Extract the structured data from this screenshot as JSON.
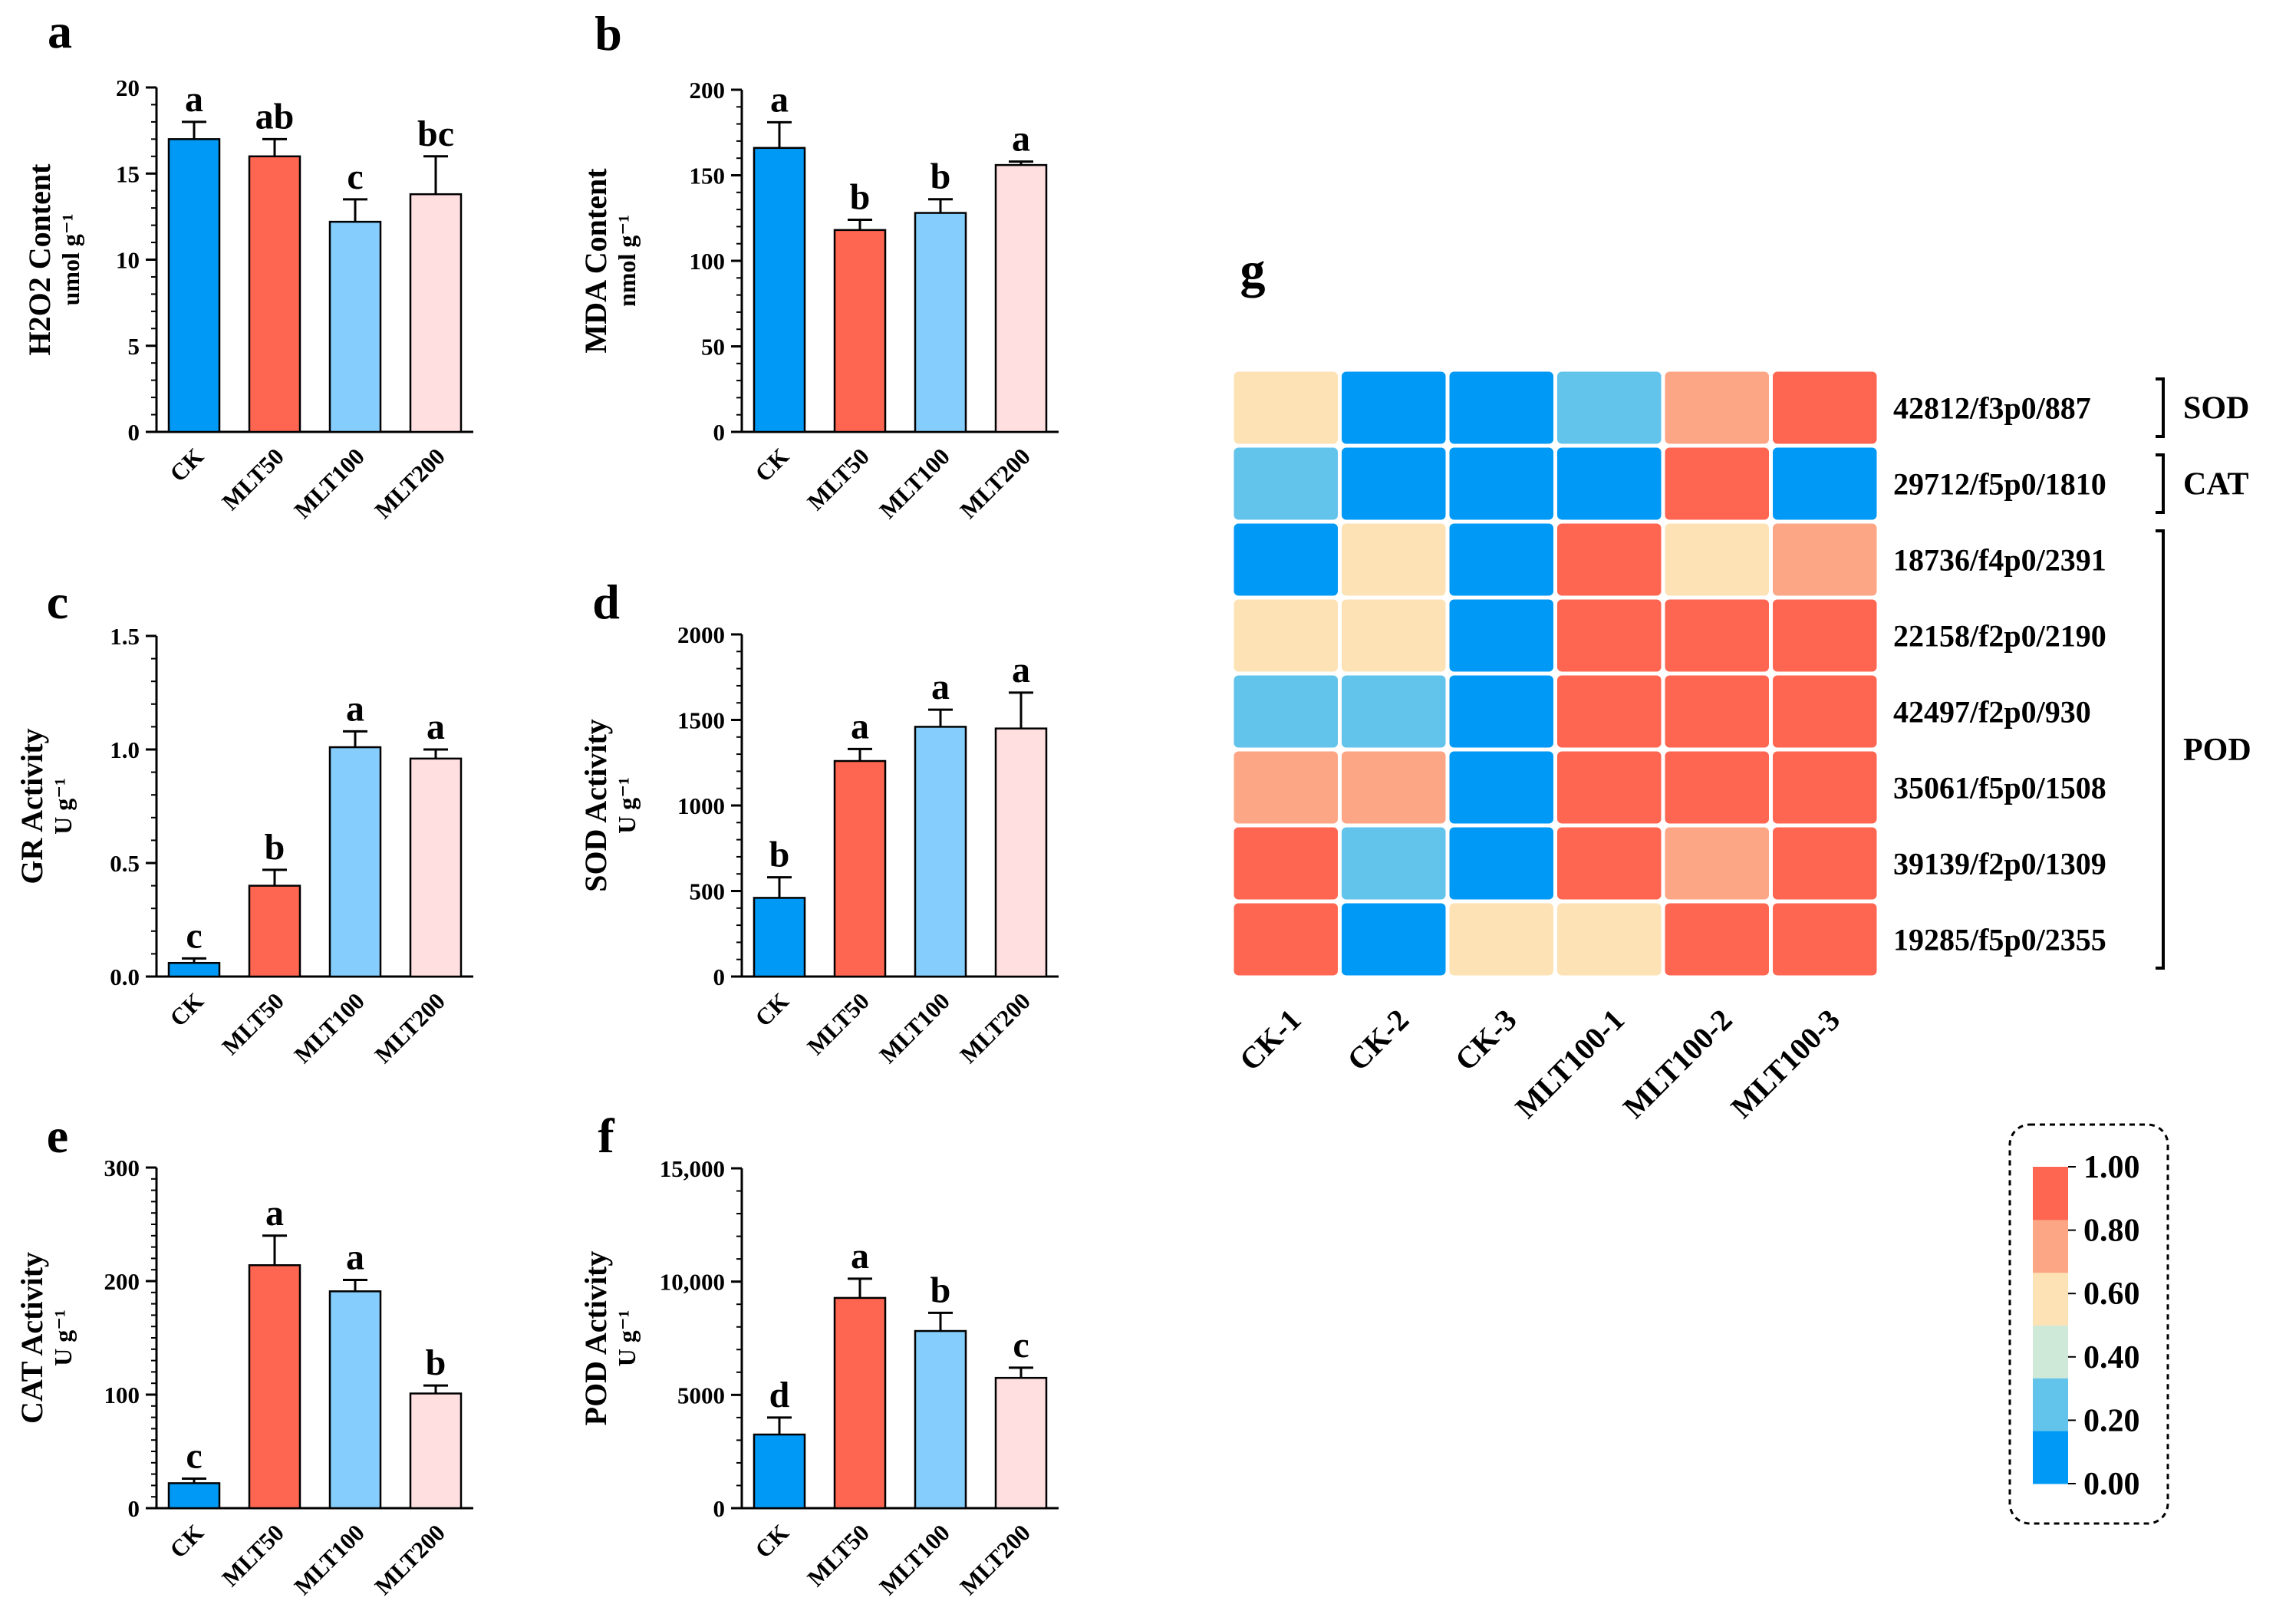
{
  "colors": {
    "CK": "#0099f5",
    "MLT50": "#ff6651",
    "MLT100": "#85cdfd",
    "MLT200": "#ffdfe0",
    "heat_bins": [
      "#0099f5",
      "#62c3eb",
      "#cfe9d9",
      "#fde2b6",
      "#fda685",
      "#ff6651"
    ]
  },
  "chart_data": [
    {
      "panel": "a",
      "type": "bar",
      "ylabel_main": "H2O2 Content",
      "ylabel_unit": "umol g⁻¹",
      "ylim": [
        0,
        20
      ],
      "yticks": [
        0,
        5,
        10,
        15,
        20
      ],
      "tick_labels": [
        "0",
        "5",
        "10",
        "15",
        "20"
      ],
      "minor_step": 1,
      "categories": [
        "CK",
        "MLT50",
        "MLT100",
        "MLT200"
      ],
      "values": [
        17.0,
        16.0,
        12.2,
        13.8
      ],
      "errors": [
        1.0,
        1.0,
        1.3,
        2.2
      ],
      "letters": [
        "a",
        "ab",
        "c",
        "bc"
      ]
    },
    {
      "panel": "b",
      "type": "bar",
      "ylabel_main": "MDA Content",
      "ylabel_unit": "nmol g⁻¹",
      "ylim": [
        0,
        200
      ],
      "yticks": [
        0,
        50,
        100,
        150,
        200
      ],
      "tick_labels": [
        "0",
        "50",
        "100",
        "150",
        "200"
      ],
      "minor_step": 10,
      "categories": [
        "CK",
        "MLT50",
        "MLT100",
        "MLT200"
      ],
      "values": [
        166,
        118,
        128,
        156
      ],
      "errors": [
        15,
        6,
        8,
        2
      ],
      "letters": [
        "a",
        "b",
        "b",
        "a"
      ]
    },
    {
      "panel": "c",
      "type": "bar",
      "ylabel_main": "GR  Activity",
      "ylabel_unit": "U g⁻¹",
      "ylim": [
        0,
        1.5
      ],
      "yticks": [
        0,
        0.5,
        1.0,
        1.5
      ],
      "tick_labels": [
        "0.0",
        "0.5",
        "1.0",
        "1.5"
      ],
      "minor_step": 0.1,
      "categories": [
        "CK",
        "MLT50",
        "MLT100",
        "MLT200"
      ],
      "values": [
        0.06,
        0.4,
        1.01,
        0.96
      ],
      "errors": [
        0.02,
        0.07,
        0.07,
        0.04
      ],
      "letters": [
        "c",
        "b",
        "a",
        "a"
      ]
    },
    {
      "panel": "d",
      "type": "bar",
      "ylabel_main": "SOD  Activity",
      "ylabel_unit": "U g⁻¹",
      "ylim": [
        0,
        2000
      ],
      "yticks": [
        0,
        500,
        1000,
        1500,
        2000
      ],
      "tick_labels": [
        "0",
        "500",
        "1000",
        "1500",
        "2000"
      ],
      "minor_step": 100,
      "categories": [
        "CK",
        "MLT50",
        "MLT100",
        "MLT200"
      ],
      "values": [
        460,
        1260,
        1460,
        1450
      ],
      "errors": [
        120,
        70,
        100,
        210
      ],
      "letters": [
        "b",
        "a",
        "a",
        "a"
      ]
    },
    {
      "panel": "e",
      "type": "bar",
      "ylabel_main": "CAT  Activity",
      "ylabel_unit": "U g⁻¹",
      "ylim": [
        0,
        300
      ],
      "yticks": [
        0,
        100,
        200,
        300
      ],
      "tick_labels": [
        "0",
        "100",
        "200",
        "300"
      ],
      "minor_step": 10,
      "categories": [
        "CK",
        "MLT50",
        "MLT100",
        "MLT200"
      ],
      "values": [
        22,
        214,
        191,
        101
      ],
      "errors": [
        4,
        26,
        10,
        7
      ],
      "letters": [
        "c",
        "a",
        "a",
        "b"
      ]
    },
    {
      "panel": "f",
      "type": "bar",
      "ylabel_main": "POD  Activity",
      "ylabel_unit": "U g⁻¹",
      "ylim": [
        0,
        15000
      ],
      "yticks": [
        0,
        5000,
        10000,
        15000
      ],
      "tick_labels": [
        "0",
        "5000",
        "10,000",
        "15,000"
      ],
      "minor_step": 1000,
      "categories": [
        "CK",
        "MLT50",
        "MLT100",
        "MLT200"
      ],
      "values": [
        3250,
        9280,
        7820,
        5750
      ],
      "errors": [
        750,
        850,
        800,
        450
      ],
      "letters": [
        "d",
        "a",
        "b",
        "c"
      ]
    },
    {
      "panel": "g",
      "type": "heatmap",
      "columns": [
        "CK-1",
        "CK-2",
        "CK-3",
        "MLT100-1",
        "MLT100-2",
        "MLT100-3"
      ],
      "rows": [
        "42812/f3p0/887",
        "29712/f5p0/1810",
        "18736/f4p0/2391",
        "22158/f2p0/2190",
        "42497/f2p0/930",
        "35061/f5p0/1508",
        "39139/f2p0/1309",
        "19285/f5p0/2355"
      ],
      "values": [
        [
          0.5,
          0.05,
          0.05,
          0.3,
          0.7,
          0.95
        ],
        [
          0.3,
          0.05,
          0.05,
          0.05,
          0.95,
          0.05
        ],
        [
          0.05,
          0.5,
          0.05,
          0.95,
          0.5,
          0.7
        ],
        [
          0.5,
          0.5,
          0.05,
          0.85,
          0.85,
          0.95
        ],
        [
          0.3,
          0.3,
          0.05,
          0.85,
          0.95,
          0.95
        ],
        [
          0.7,
          0.7,
          0.05,
          0.85,
          0.95,
          0.95
        ],
        [
          0.95,
          0.3,
          0.05,
          0.95,
          0.7,
          0.85
        ],
        [
          0.95,
          0.05,
          0.5,
          0.5,
          0.95,
          0.95
        ]
      ],
      "groups": [
        {
          "label": "SOD",
          "rows": [
            0,
            0
          ]
        },
        {
          "label": "CAT",
          "rows": [
            1,
            1
          ]
        },
        {
          "label": "POD",
          "rows": [
            2,
            7
          ]
        }
      ],
      "scale": {
        "min": 0,
        "max": 1,
        "tick_labels": [
          "0.00",
          "0.20",
          "0.40",
          "0.60",
          "0.80",
          "1.00"
        ]
      }
    }
  ]
}
